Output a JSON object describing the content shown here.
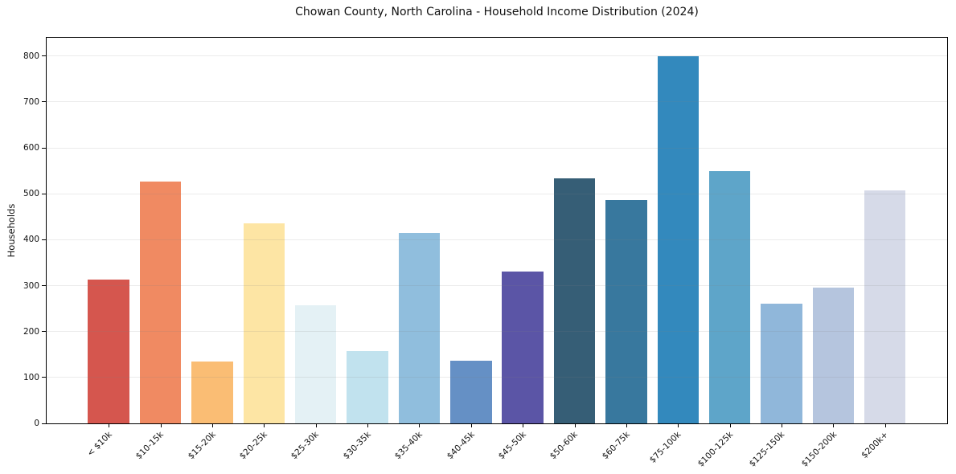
{
  "title": "Chowan County, North Carolina - Household Income Distribution (2024)",
  "chart_data": {
    "type": "bar",
    "title": "Chowan County, North Carolina - Household Income Distribution (2024)",
    "xlabel": "",
    "ylabel": "Households",
    "categories": [
      "< $10k",
      "$10-15k",
      "$15-20k",
      "$20-25k",
      "$25-30k",
      "$30-35k",
      "$35-40k",
      "$40-45k",
      "$45-50k",
      "$50-60k",
      "$60-75k",
      "$75-100k",
      "$100-125k",
      "$125-150k",
      "$150-200k",
      "$200k+"
    ],
    "values": [
      314,
      526,
      134,
      435,
      258,
      157,
      414,
      136,
      330,
      534,
      486,
      799,
      549,
      261,
      295,
      507
    ],
    "bar_colors": [
      "#d5564e",
      "#f08a62",
      "#fabd74",
      "#fde5a4",
      "#e4f1f5",
      "#c1e2ee",
      "#90bedd",
      "#6590c5",
      "#5b55a6",
      "#365e76",
      "#38789e",
      "#3389bd",
      "#5ea5c9",
      "#90b7da",
      "#b5c5de",
      "#d6dae8"
    ],
    "yticks": [
      0,
      100,
      200,
      300,
      400,
      500,
      600,
      700,
      800
    ],
    "ylim": [
      0,
      840
    ],
    "xlim": [
      -1.2,
      16.2
    ],
    "bar_width_units": 0.8,
    "grid": "horizontal",
    "grid_color": "rgba(128,128,128,0.16)",
    "axis_color": "#000000",
    "text_color": "#111111",
    "background": "#ffffff",
    "legend": "none"
  }
}
